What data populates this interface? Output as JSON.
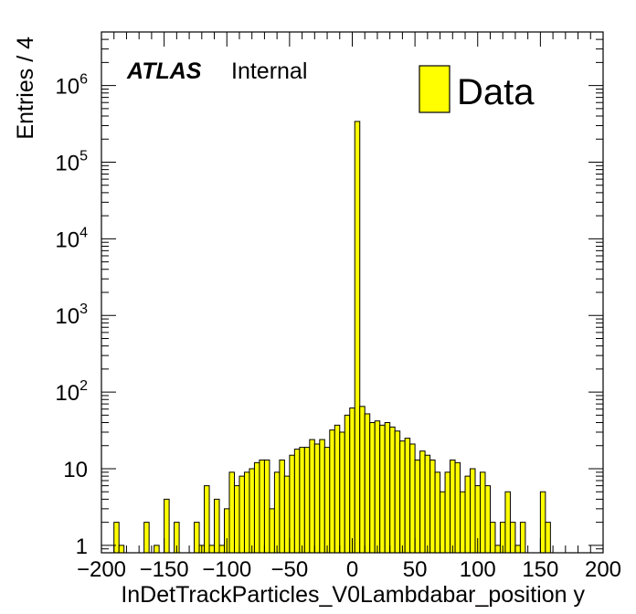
{
  "chart_data": {
    "type": "bar",
    "xlabel": "InDetTrackParticles_V0Lambdabar_position y",
    "ylabel": "Entries / 4",
    "xlim": [
      -200,
      200
    ],
    "ylim_log": [
      0.8,
      5000000
    ],
    "log_y": true,
    "bin_width": 4,
    "x_tick_labels": [
      "-200",
      "-150",
      "-100",
      "-50",
      "0",
      "50",
      "100",
      "150",
      "200"
    ],
    "y_tick_labels": [
      {
        "base": "1",
        "exp": ""
      },
      {
        "base": "10",
        "exp": ""
      },
      {
        "base": "10",
        "exp": "2"
      },
      {
        "base": "10",
        "exp": "3"
      },
      {
        "base": "10",
        "exp": "4"
      },
      {
        "base": "10",
        "exp": "5"
      },
      {
        "base": "10",
        "exp": "6"
      }
    ],
    "bins": [
      [
        -188,
        2
      ],
      [
        -184,
        1
      ],
      [
        -164,
        2
      ],
      [
        -156,
        1
      ],
      [
        -148,
        4
      ],
      [
        -140,
        2
      ],
      [
        -124,
        2
      ],
      [
        -120,
        1
      ],
      [
        -116,
        6
      ],
      [
        -112,
        1
      ],
      [
        -108,
        4
      ],
      [
        -104,
        1
      ],
      [
        -100,
        3
      ],
      [
        -96,
        9
      ],
      [
        -92,
        6
      ],
      [
        -88,
        8
      ],
      [
        -84,
        9
      ],
      [
        -80,
        10
      ],
      [
        -76,
        12
      ],
      [
        -72,
        13
      ],
      [
        -68,
        13
      ],
      [
        -64,
        3
      ],
      [
        -60,
        9
      ],
      [
        -56,
        13
      ],
      [
        -52,
        8
      ],
      [
        -48,
        15
      ],
      [
        -44,
        18
      ],
      [
        -40,
        19
      ],
      [
        -36,
        19
      ],
      [
        -32,
        24
      ],
      [
        -28,
        21
      ],
      [
        -24,
        24
      ],
      [
        -20,
        19
      ],
      [
        -16,
        32
      ],
      [
        -12,
        37
      ],
      [
        -8,
        30
      ],
      [
        -4,
        50
      ],
      [
        0,
        62
      ],
      [
        4,
        340000
      ],
      [
        8,
        65
      ],
      [
        12,
        52
      ],
      [
        16,
        40
      ],
      [
        20,
        42
      ],
      [
        24,
        37
      ],
      [
        28,
        40
      ],
      [
        32,
        35
      ],
      [
        36,
        31
      ],
      [
        40,
        23
      ],
      [
        44,
        25
      ],
      [
        48,
        21
      ],
      [
        52,
        13
      ],
      [
        56,
        17
      ],
      [
        60,
        15
      ],
      [
        64,
        13
      ],
      [
        68,
        9
      ],
      [
        72,
        5
      ],
      [
        76,
        9
      ],
      [
        80,
        13
      ],
      [
        84,
        12
      ],
      [
        88,
        5
      ],
      [
        92,
        8
      ],
      [
        96,
        10
      ],
      [
        100,
        6
      ],
      [
        104,
        9
      ],
      [
        108,
        6
      ],
      [
        112,
        2
      ],
      [
        116,
        1
      ],
      [
        120,
        2
      ],
      [
        124,
        5
      ],
      [
        128,
        2
      ],
      [
        132,
        1
      ],
      [
        136,
        2
      ],
      [
        152,
        5
      ],
      [
        156,
        2
      ]
    ],
    "fill_color": "#ffff00",
    "legend": {
      "label": "Data",
      "position": "top-right"
    },
    "annotations": {
      "experiment": "ATLAS",
      "status": "Internal"
    }
  }
}
